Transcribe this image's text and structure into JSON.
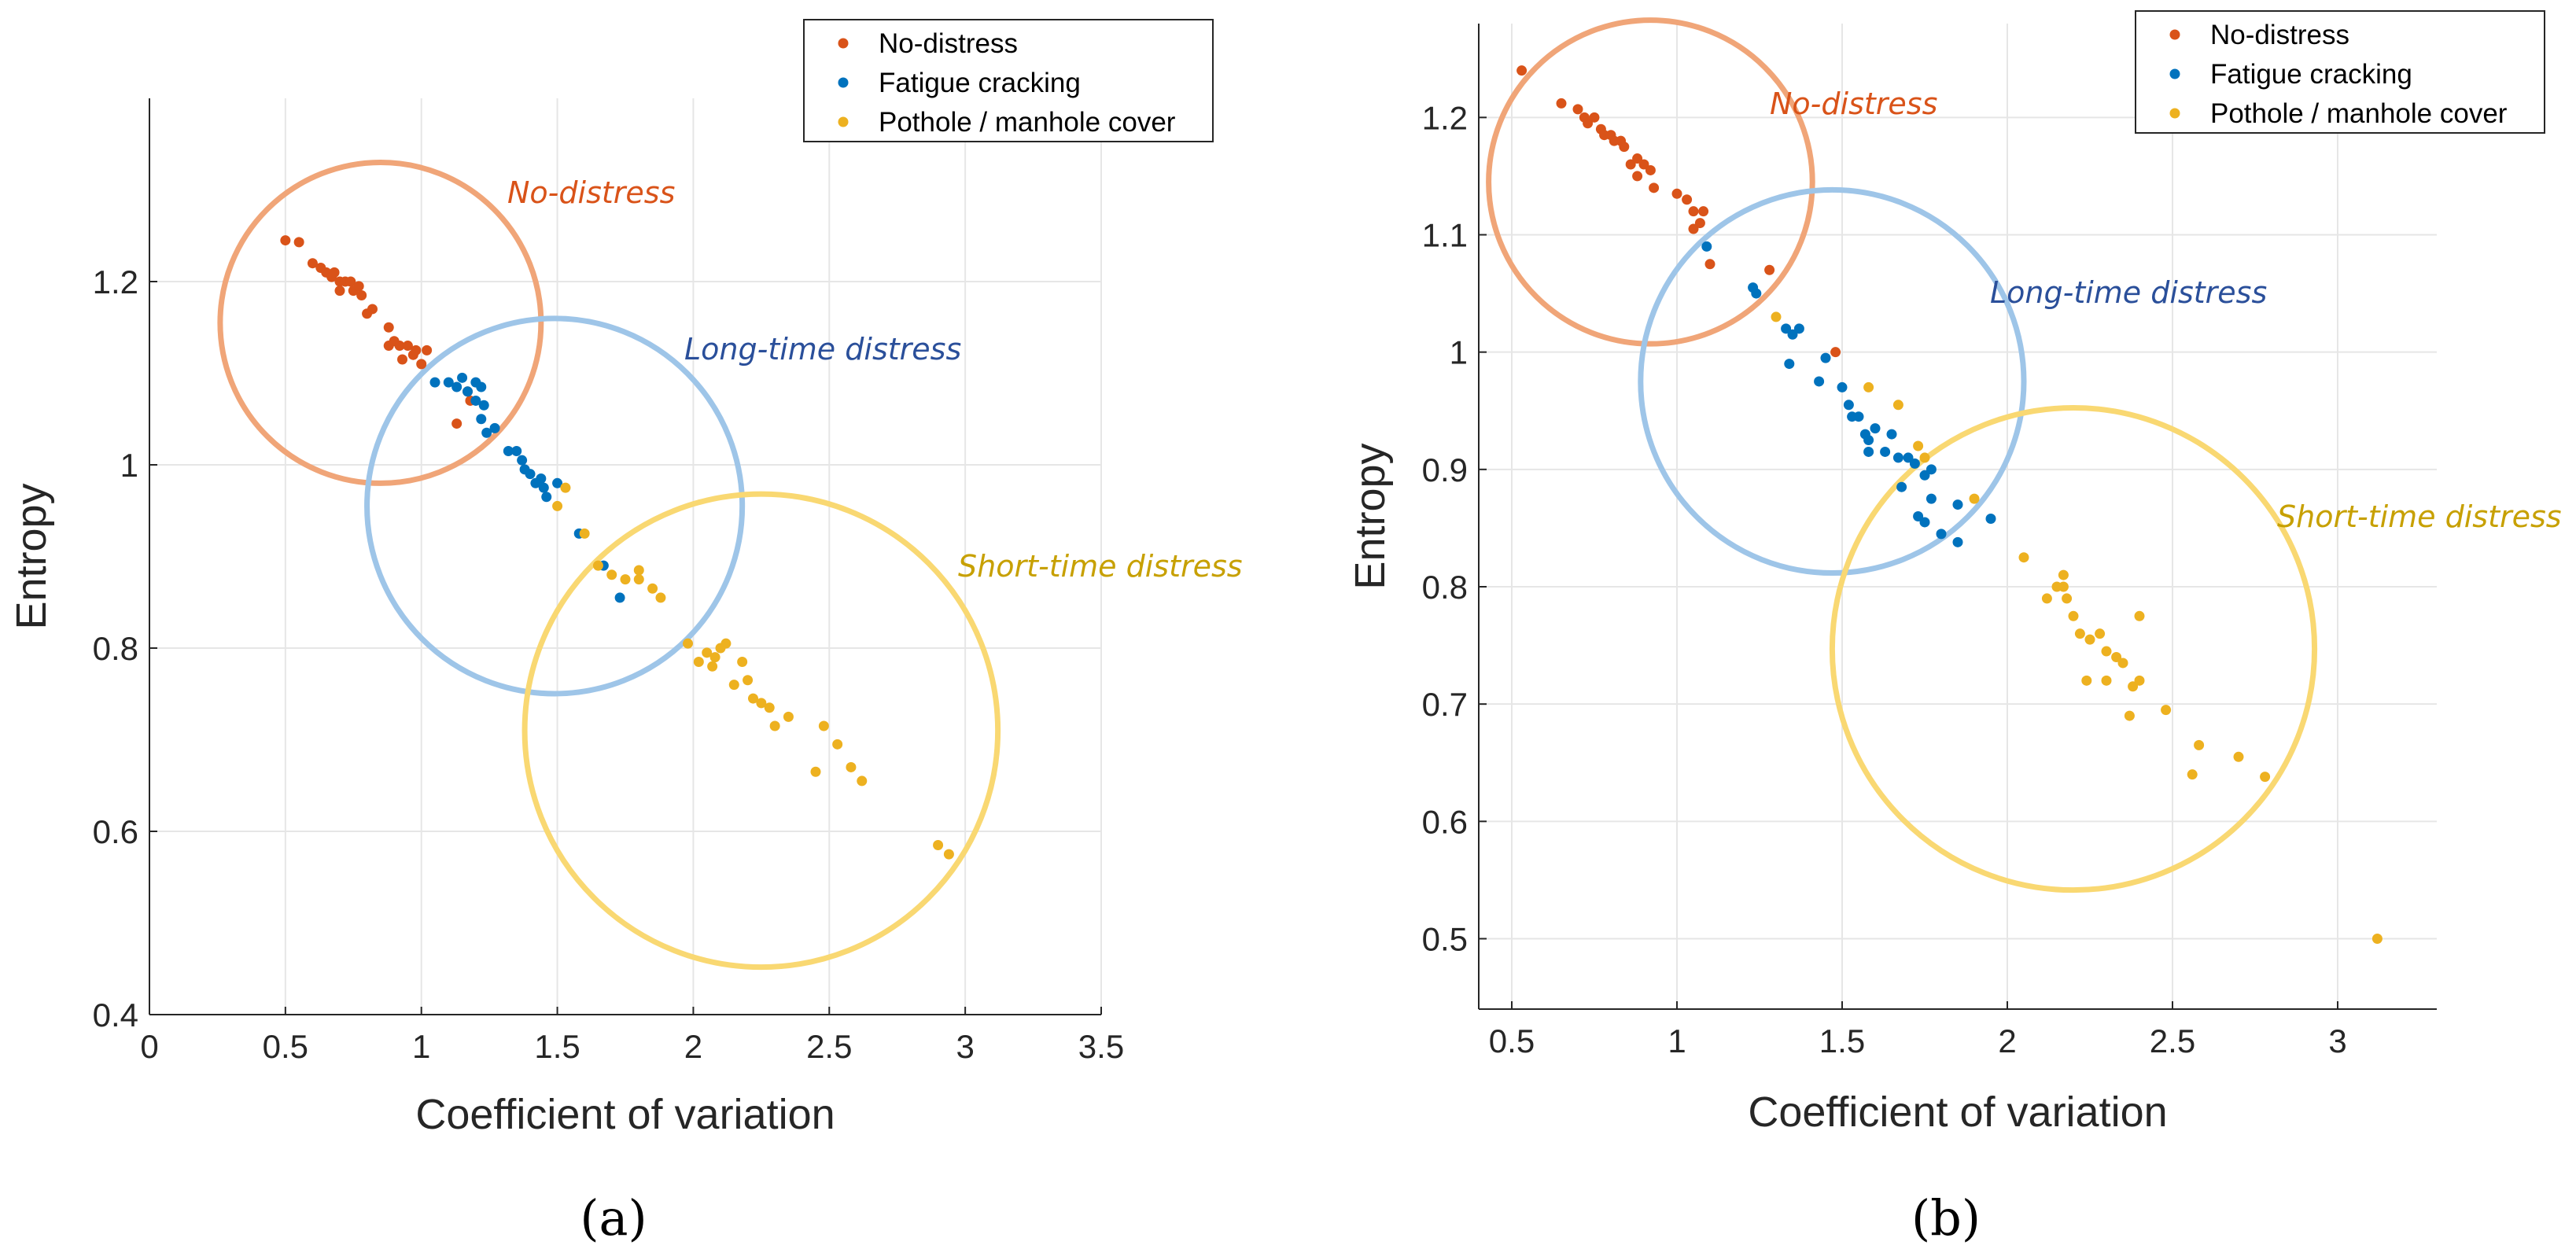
{
  "chart_data": [
    {
      "type": "scatter",
      "panel_label": "(a)",
      "xlabel": "Coefficient of variation",
      "ylabel": "Entropy",
      "xlim": [
        0,
        3.5
      ],
      "ylim": [
        0.4,
        1.4
      ],
      "x_ticks": [
        "0",
        "0.5",
        "1",
        "1.5",
        "2",
        "2.5",
        "3",
        "3.5"
      ],
      "y_ticks": [
        "0.4",
        "0.6",
        "0.8",
        "1",
        "1.2"
      ],
      "grid": true,
      "legend_position": "top-right",
      "series": [
        {
          "name": "No-distress",
          "color": "#d95319",
          "points": [
            [
              0.5,
              1.245
            ],
            [
              0.55,
              1.243
            ],
            [
              0.6,
              1.22
            ],
            [
              0.63,
              1.215
            ],
            [
              0.65,
              1.21
            ],
            [
              0.67,
              1.205
            ],
            [
              0.68,
              1.21
            ],
            [
              0.7,
              1.2
            ],
            [
              0.7,
              1.19
            ],
            [
              0.72,
              1.2
            ],
            [
              0.74,
              1.2
            ],
            [
              0.75,
              1.19
            ],
            [
              0.77,
              1.195
            ],
            [
              0.78,
              1.185
            ],
            [
              0.8,
              1.165
            ],
            [
              0.82,
              1.17
            ],
            [
              0.88,
              1.15
            ],
            [
              0.88,
              1.13
            ],
            [
              0.9,
              1.135
            ],
            [
              0.92,
              1.13
            ],
            [
              0.93,
              1.115
            ],
            [
              0.95,
              1.13
            ],
            [
              0.97,
              1.12
            ],
            [
              0.98,
              1.125
            ],
            [
              1.0,
              1.11
            ],
            [
              1.02,
              1.125
            ],
            [
              1.13,
              1.045
            ],
            [
              1.17,
              1.08
            ],
            [
              1.18,
              1.07
            ]
          ]
        },
        {
          "name": "Fatigue cracking",
          "color": "#0072bd",
          "points": [
            [
              1.05,
              1.09
            ],
            [
              1.1,
              1.09
            ],
            [
              1.13,
              1.085
            ],
            [
              1.15,
              1.095
            ],
            [
              1.17,
              1.08
            ],
            [
              1.2,
              1.09
            ],
            [
              1.2,
              1.07
            ],
            [
              1.22,
              1.085
            ],
            [
              1.22,
              1.05
            ],
            [
              1.23,
              1.065
            ],
            [
              1.24,
              1.035
            ],
            [
              1.27,
              1.04
            ],
            [
              1.32,
              1.015
            ],
            [
              1.35,
              1.015
            ],
            [
              1.37,
              1.005
            ],
            [
              1.38,
              0.995
            ],
            [
              1.4,
              0.99
            ],
            [
              1.42,
              0.98
            ],
            [
              1.44,
              0.985
            ],
            [
              1.45,
              0.975
            ],
            [
              1.46,
              0.965
            ],
            [
              1.5,
              0.98
            ],
            [
              1.58,
              0.925
            ],
            [
              1.67,
              0.89
            ],
            [
              1.73,
              0.855
            ]
          ]
        },
        {
          "name": "Pothole / manhole cover",
          "color": "#edb120",
          "points": [
            [
              1.53,
              0.975
            ],
            [
              1.5,
              0.955
            ],
            [
              1.6,
              0.925
            ],
            [
              1.65,
              0.89
            ],
            [
              1.7,
              0.88
            ],
            [
              1.75,
              0.875
            ],
            [
              1.8,
              0.875
            ],
            [
              1.8,
              0.885
            ],
            [
              1.85,
              0.865
            ],
            [
              1.88,
              0.855
            ],
            [
              1.98,
              0.805
            ],
            [
              2.02,
              0.785
            ],
            [
              2.05,
              0.795
            ],
            [
              2.07,
              0.78
            ],
            [
              2.08,
              0.79
            ],
            [
              2.1,
              0.8
            ],
            [
              2.12,
              0.805
            ],
            [
              2.15,
              0.76
            ],
            [
              2.18,
              0.785
            ],
            [
              2.2,
              0.765
            ],
            [
              2.22,
              0.745
            ],
            [
              2.25,
              0.74
            ],
            [
              2.28,
              0.735
            ],
            [
              2.3,
              0.715
            ],
            [
              2.35,
              0.725
            ],
            [
              2.45,
              0.665
            ],
            [
              2.48,
              0.715
            ],
            [
              2.53,
              0.695
            ],
            [
              2.58,
              0.67
            ],
            [
              2.62,
              0.655
            ],
            [
              2.9,
              0.585
            ],
            [
              2.94,
              0.575
            ]
          ]
        }
      ],
      "circles": [
        {
          "label": "No-distress",
          "label_color": "#d95319",
          "stroke": "#f0a578",
          "cx": 0.85,
          "cy": 1.155,
          "r_x": 0.59
        },
        {
          "label": "Long-time distress",
          "label_color": "#2a4f9a",
          "stroke": "#9ec5e8",
          "cx": 1.49,
          "cy": 0.955,
          "r_x": 0.69
        },
        {
          "label": "Short-time distress",
          "label_color": "#c7a000",
          "stroke": "#f9d872",
          "cx": 2.25,
          "cy": 0.71,
          "r_x": 0.87
        }
      ]
    },
    {
      "type": "scatter",
      "panel_label": "(b)",
      "xlabel": "Coefficient of variation",
      "ylabel": "Entropy",
      "xlim": [
        0.4,
        3.3
      ],
      "ylim": [
        0.44,
        1.28
      ],
      "x_ticks": [
        "0.5",
        "1",
        "1.5",
        "2",
        "2.5",
        "3"
      ],
      "y_ticks": [
        "0.5",
        "0.6",
        "0.7",
        "0.8",
        "0.9",
        "1",
        "1.1",
        "1.2"
      ],
      "grid": true,
      "legend_position": "top-right",
      "series": [
        {
          "name": "No-distress",
          "color": "#d95319",
          "points": [
            [
              0.53,
              1.24
            ],
            [
              0.65,
              1.212
            ],
            [
              0.7,
              1.207
            ],
            [
              0.72,
              1.2
            ],
            [
              0.73,
              1.195
            ],
            [
              0.75,
              1.2
            ],
            [
              0.77,
              1.19
            ],
            [
              0.78,
              1.185
            ],
            [
              0.8,
              1.185
            ],
            [
              0.81,
              1.18
            ],
            [
              0.83,
              1.18
            ],
            [
              0.84,
              1.175
            ],
            [
              0.86,
              1.16
            ],
            [
              0.88,
              1.165
            ],
            [
              0.88,
              1.15
            ],
            [
              0.9,
              1.16
            ],
            [
              0.92,
              1.155
            ],
            [
              0.93,
              1.14
            ],
            [
              1.0,
              1.135
            ],
            [
              1.03,
              1.13
            ],
            [
              1.05,
              1.12
            ],
            [
              1.07,
              1.11
            ],
            [
              1.08,
              1.12
            ],
            [
              1.1,
              1.075
            ],
            [
              1.28,
              1.07
            ],
            [
              1.48,
              1.0
            ],
            [
              1.05,
              1.105
            ]
          ]
        },
        {
          "name": "Fatigue cracking",
          "color": "#0072bd",
          "points": [
            [
              1.09,
              1.09
            ],
            [
              1.23,
              1.055
            ],
            [
              1.24,
              1.05
            ],
            [
              1.33,
              1.02
            ],
            [
              1.35,
              1.015
            ],
            [
              1.37,
              1.02
            ],
            [
              1.34,
              0.99
            ],
            [
              1.45,
              0.995
            ],
            [
              1.43,
              0.975
            ],
            [
              1.5,
              0.97
            ],
            [
              1.52,
              0.955
            ],
            [
              1.53,
              0.945
            ],
            [
              1.55,
              0.945
            ],
            [
              1.57,
              0.93
            ],
            [
              1.58,
              0.925
            ],
            [
              1.6,
              0.935
            ],
            [
              1.58,
              0.915
            ],
            [
              1.63,
              0.915
            ],
            [
              1.65,
              0.93
            ],
            [
              1.67,
              0.91
            ],
            [
              1.7,
              0.91
            ],
            [
              1.72,
              0.905
            ],
            [
              1.75,
              0.895
            ],
            [
              1.77,
              0.9
            ],
            [
              1.68,
              0.885
            ],
            [
              1.73,
              0.86
            ],
            [
              1.75,
              0.855
            ],
            [
              1.77,
              0.875
            ],
            [
              1.8,
              0.845
            ],
            [
              1.85,
              0.87
            ],
            [
              1.85,
              0.838
            ],
            [
              1.95,
              0.858
            ]
          ]
        },
        {
          "name": "Pothole / manhole cover",
          "color": "#edb120",
          "points": [
            [
              1.3,
              1.03
            ],
            [
              1.58,
              0.97
            ],
            [
              1.67,
              0.955
            ],
            [
              1.73,
              0.92
            ],
            [
              1.75,
              0.91
            ],
            [
              1.9,
              0.875
            ],
            [
              2.05,
              0.825
            ],
            [
              2.12,
              0.79
            ],
            [
              2.15,
              0.8
            ],
            [
              2.17,
              0.81
            ],
            [
              2.17,
              0.8
            ],
            [
              2.18,
              0.79
            ],
            [
              2.2,
              0.775
            ],
            [
              2.22,
              0.76
            ],
            [
              2.25,
              0.755
            ],
            [
              2.28,
              0.76
            ],
            [
              2.3,
              0.745
            ],
            [
              2.33,
              0.74
            ],
            [
              2.24,
              0.72
            ],
            [
              2.3,
              0.72
            ],
            [
              2.35,
              0.735
            ],
            [
              2.38,
              0.715
            ],
            [
              2.4,
              0.775
            ],
            [
              2.4,
              0.72
            ],
            [
              2.37,
              0.69
            ],
            [
              2.48,
              0.695
            ],
            [
              2.56,
              0.64
            ],
            [
              2.58,
              0.665
            ],
            [
              2.7,
              0.655
            ],
            [
              2.78,
              0.638
            ],
            [
              3.12,
              0.5
            ]
          ]
        }
      ],
      "circles": [
        {
          "label": "No-distress",
          "label_color": "#d95319",
          "stroke": "#f0a578",
          "cx": 0.92,
          "cy": 1.145,
          "r_x": 0.49
        },
        {
          "label": "Long-time distress",
          "label_color": "#2a4f9a",
          "stroke": "#9ec5e8",
          "cx": 1.47,
          "cy": 0.975,
          "r_x": 0.58
        },
        {
          "label": "Short-time distress",
          "label_color": "#c7a000",
          "stroke": "#f9d872",
          "cx": 2.2,
          "cy": 0.747,
          "r_x": 0.73
        }
      ]
    }
  ]
}
